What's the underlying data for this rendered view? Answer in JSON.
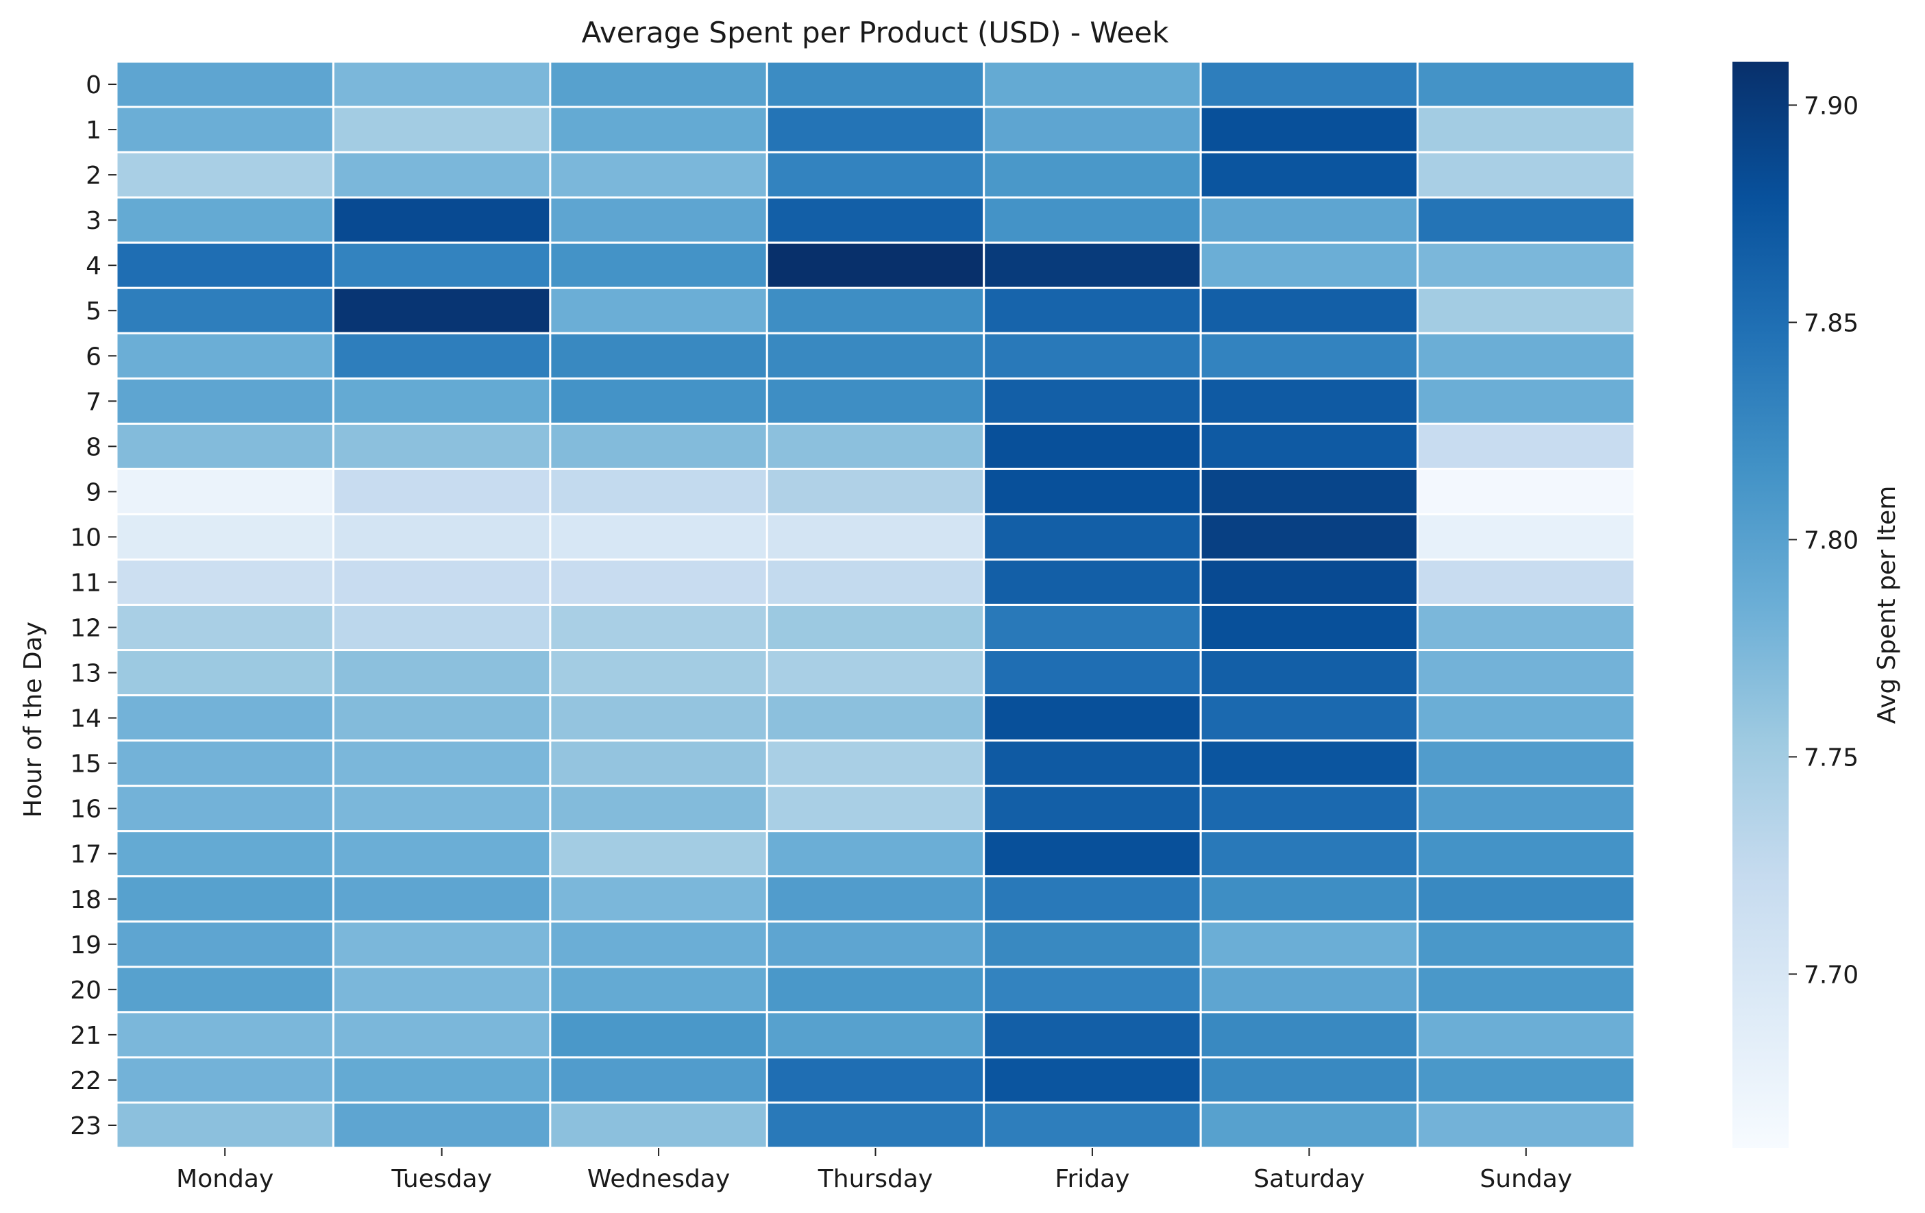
{
  "chart_data": {
    "type": "heatmap",
    "title": "Average Spent per Product (USD) - Week",
    "xlabel": "",
    "ylabel": "Hour of the Day",
    "x_categories": [
      "Monday",
      "Tuesday",
      "Wednesday",
      "Thursday",
      "Friday",
      "Saturday",
      "Sunday"
    ],
    "y_categories": [
      "0",
      "1",
      "2",
      "3",
      "4",
      "5",
      "6",
      "7",
      "8",
      "9",
      "10",
      "11",
      "12",
      "13",
      "14",
      "15",
      "16",
      "17",
      "18",
      "19",
      "20",
      "21",
      "22",
      "23"
    ],
    "values": [
      [
        7.795,
        7.775,
        7.8,
        7.822,
        7.79,
        7.835,
        7.815
      ],
      [
        7.785,
        7.75,
        7.79,
        7.845,
        7.795,
        7.88,
        7.75
      ],
      [
        7.745,
        7.775,
        7.775,
        7.83,
        7.81,
        7.875,
        7.745
      ],
      [
        7.79,
        7.885,
        7.795,
        7.865,
        7.815,
        7.795,
        7.845
      ],
      [
        7.85,
        7.83,
        7.815,
        7.91,
        7.9,
        7.785,
        7.775
      ],
      [
        7.835,
        7.905,
        7.785,
        7.82,
        7.86,
        7.865,
        7.75
      ],
      [
        7.785,
        7.835,
        7.825,
        7.825,
        7.84,
        7.83,
        7.785
      ],
      [
        7.795,
        7.79,
        7.815,
        7.82,
        7.865,
        7.87,
        7.785
      ],
      [
        7.77,
        7.765,
        7.77,
        7.765,
        7.88,
        7.87,
        7.72
      ],
      [
        7.675,
        7.72,
        7.725,
        7.74,
        7.88,
        7.89,
        7.665
      ],
      [
        7.69,
        7.705,
        7.7,
        7.705,
        7.865,
        7.895,
        7.68
      ],
      [
        7.715,
        7.72,
        7.72,
        7.725,
        7.865,
        7.885,
        7.72
      ],
      [
        7.745,
        7.73,
        7.745,
        7.755,
        7.84,
        7.88,
        7.775
      ],
      [
        7.755,
        7.765,
        7.75,
        7.745,
        7.85,
        7.865,
        7.78
      ],
      [
        7.78,
        7.77,
        7.76,
        7.765,
        7.88,
        7.855,
        7.785
      ],
      [
        7.78,
        7.775,
        7.76,
        7.745,
        7.87,
        7.875,
        7.805
      ],
      [
        7.78,
        7.775,
        7.77,
        7.745,
        7.865,
        7.855,
        7.805
      ],
      [
        7.79,
        7.785,
        7.75,
        7.785,
        7.88,
        7.84,
        7.815
      ],
      [
        7.8,
        7.795,
        7.775,
        7.805,
        7.84,
        7.82,
        7.825
      ],
      [
        7.795,
        7.775,
        7.785,
        7.795,
        7.825,
        7.785,
        7.81
      ],
      [
        7.8,
        7.775,
        7.79,
        7.81,
        7.83,
        7.795,
        7.81
      ],
      [
        7.775,
        7.775,
        7.81,
        7.8,
        7.865,
        7.825,
        7.785
      ],
      [
        7.78,
        7.79,
        7.805,
        7.85,
        7.875,
        7.825,
        7.81
      ],
      [
        7.765,
        7.795,
        7.765,
        7.84,
        7.835,
        7.8,
        7.78
      ]
    ],
    "colorbar": {
      "label": "Avg Spent per Item",
      "range": [
        7.66,
        7.91
      ],
      "ticks": [
        "7.70",
        "7.75",
        "7.80",
        "7.85",
        "7.90"
      ],
      "colormap": "Blues",
      "colormap_stops": [
        "#f7fbff",
        "#deebf7",
        "#c6dbef",
        "#9ecae1",
        "#6baed6",
        "#4292c6",
        "#2171b5",
        "#08519c",
        "#08306b"
      ]
    },
    "grid": false,
    "cell_border_color": "#ffffff"
  }
}
